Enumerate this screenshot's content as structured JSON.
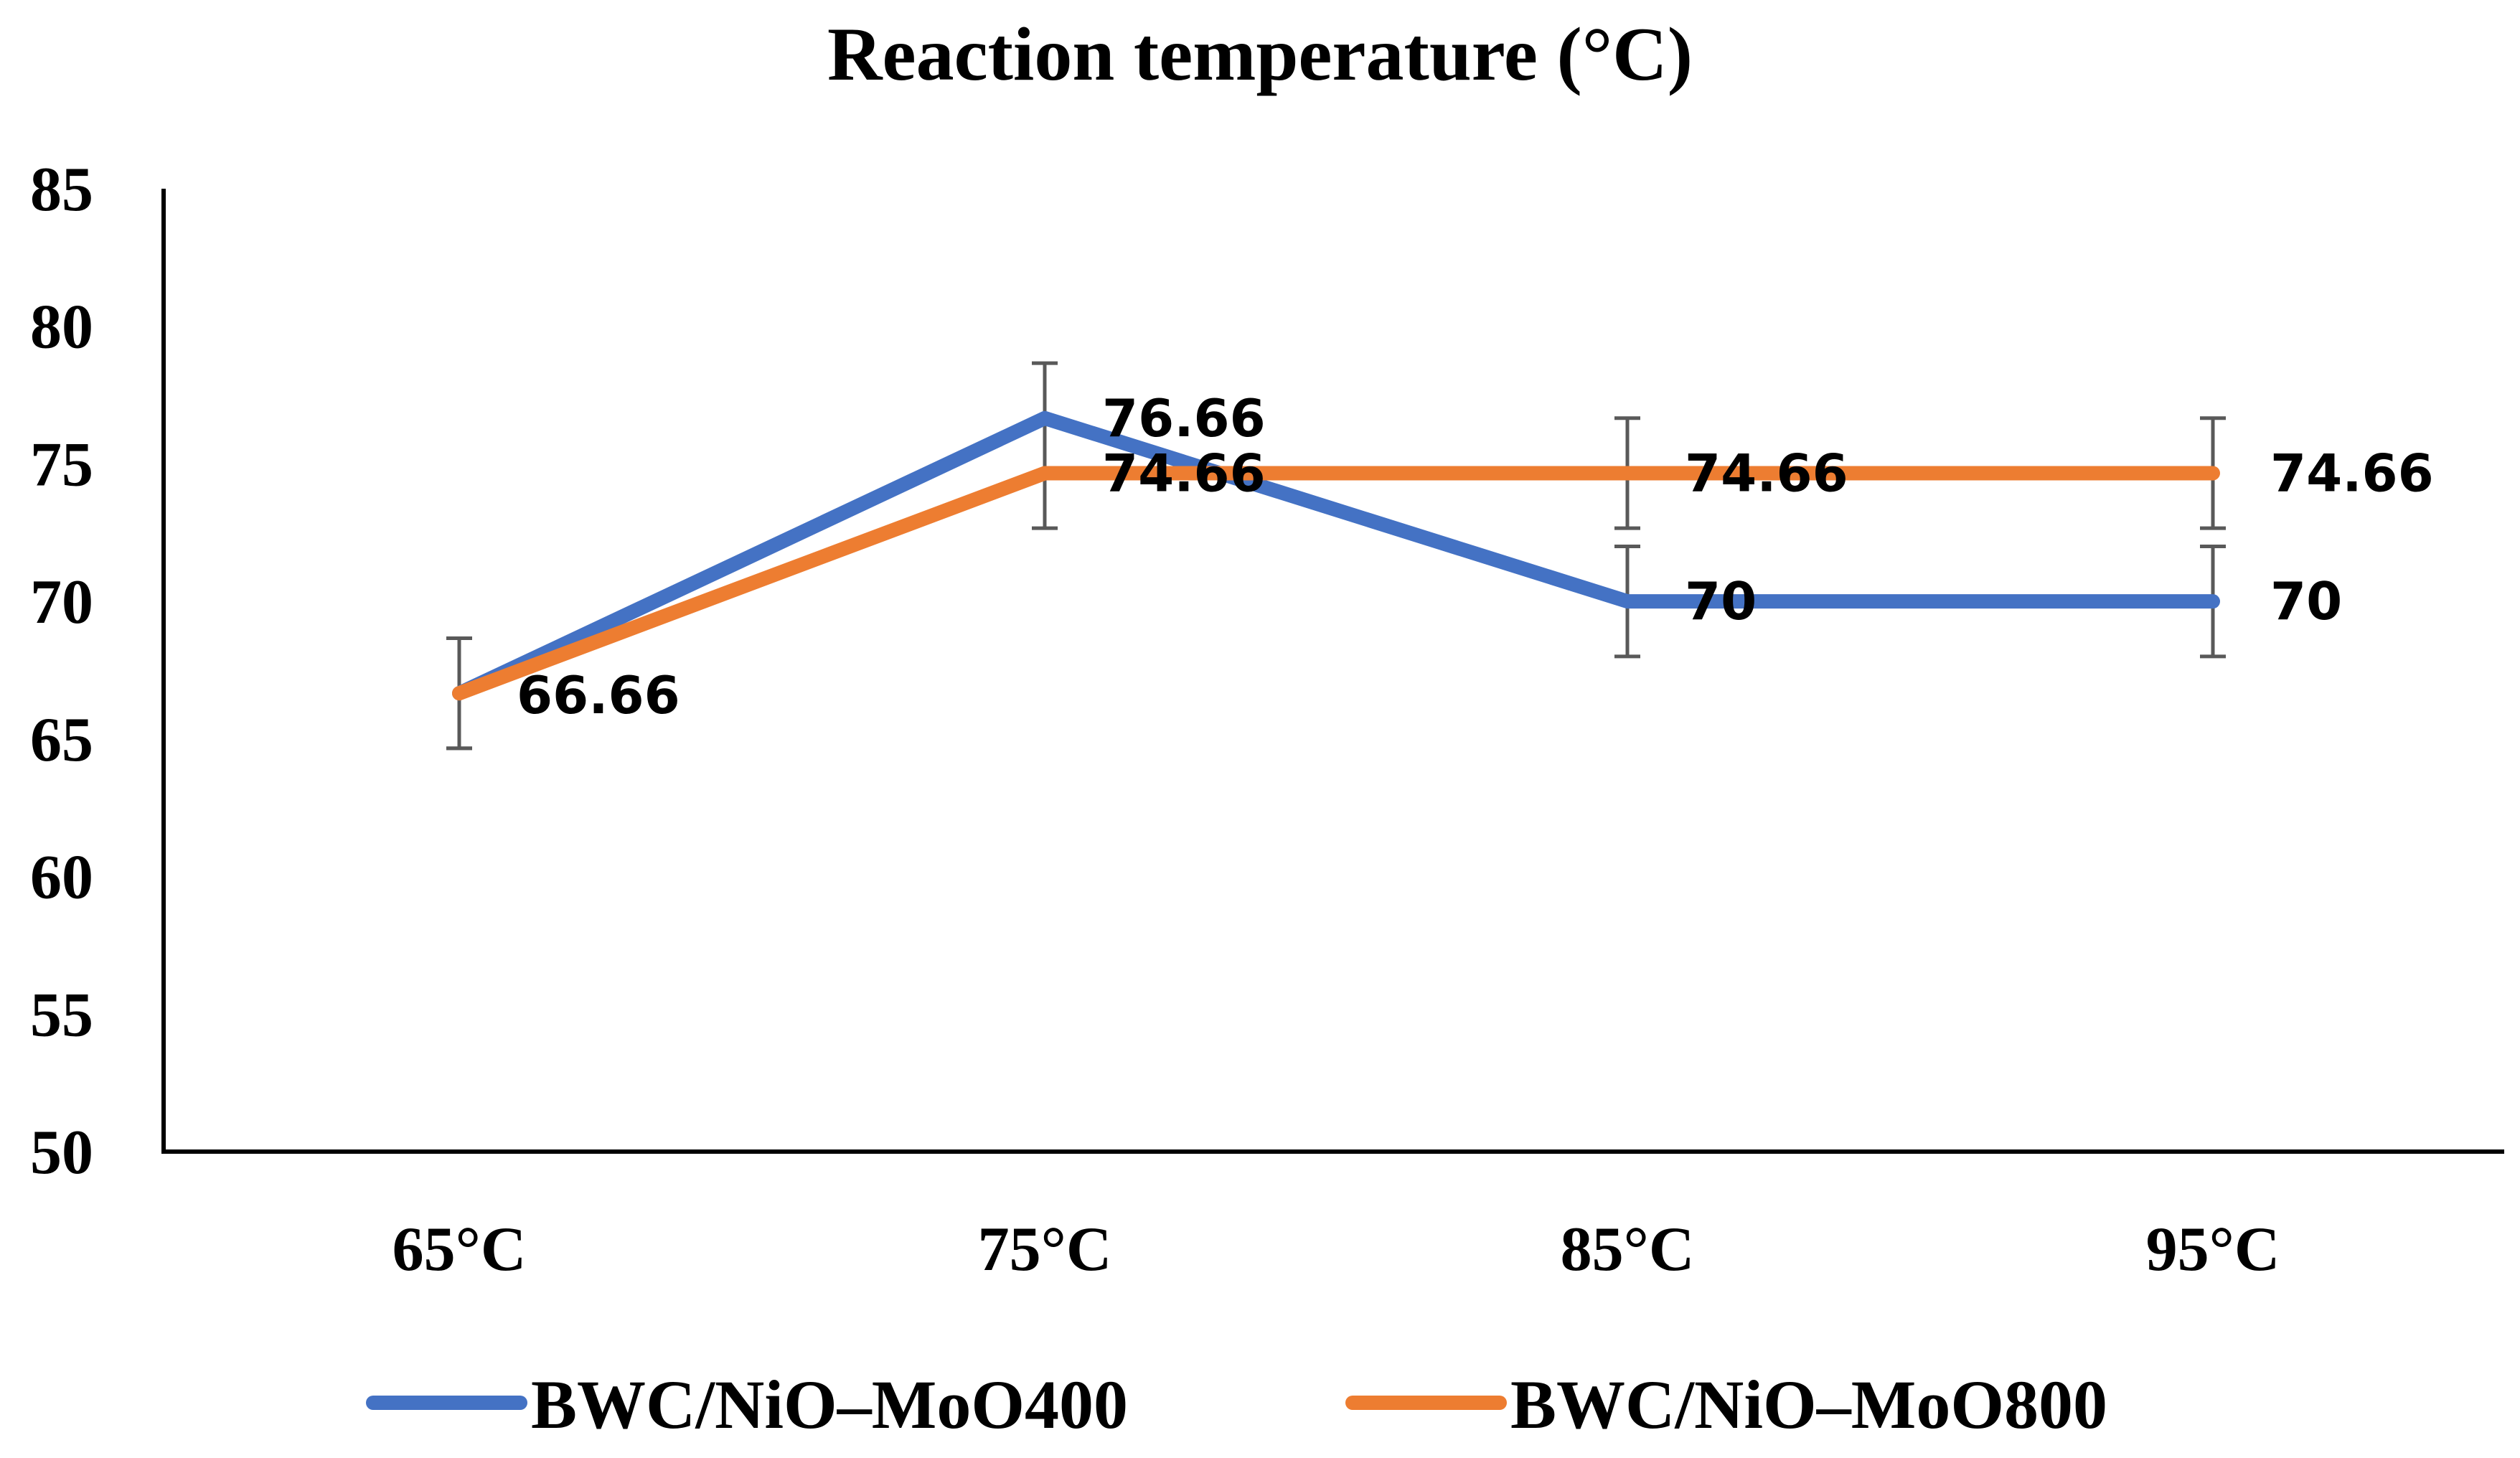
{
  "chart_data": {
    "type": "line",
    "title": "Reaction temperature (°C)",
    "xlabel": "",
    "ylabel": "",
    "categories": [
      "65°C",
      "75°C",
      "85°C",
      "95°C"
    ],
    "ylim": [
      50,
      85
    ],
    "yticks": [
      50,
      55,
      60,
      65,
      70,
      75,
      80,
      85
    ],
    "grid": false,
    "legend_position": "bottom",
    "series": [
      {
        "name": "BWC/NiO–MoO400",
        "color": "#4472C4",
        "values": [
          66.66,
          76.66,
          70,
          70
        ],
        "labels": [
          "66.66",
          "76.66",
          "70",
          "70"
        ],
        "error": [
          2,
          2,
          2,
          2
        ]
      },
      {
        "name": "BWC/NiO–MoO800",
        "color": "#ED7D31",
        "values": [
          66.66,
          74.66,
          74.66,
          74.66
        ],
        "labels": [
          "",
          "74.66",
          "74.66",
          "74.66"
        ],
        "error": [
          2,
          2,
          2,
          2
        ]
      }
    ],
    "error_bar_color": "#595959",
    "axis_color": "#000000"
  }
}
